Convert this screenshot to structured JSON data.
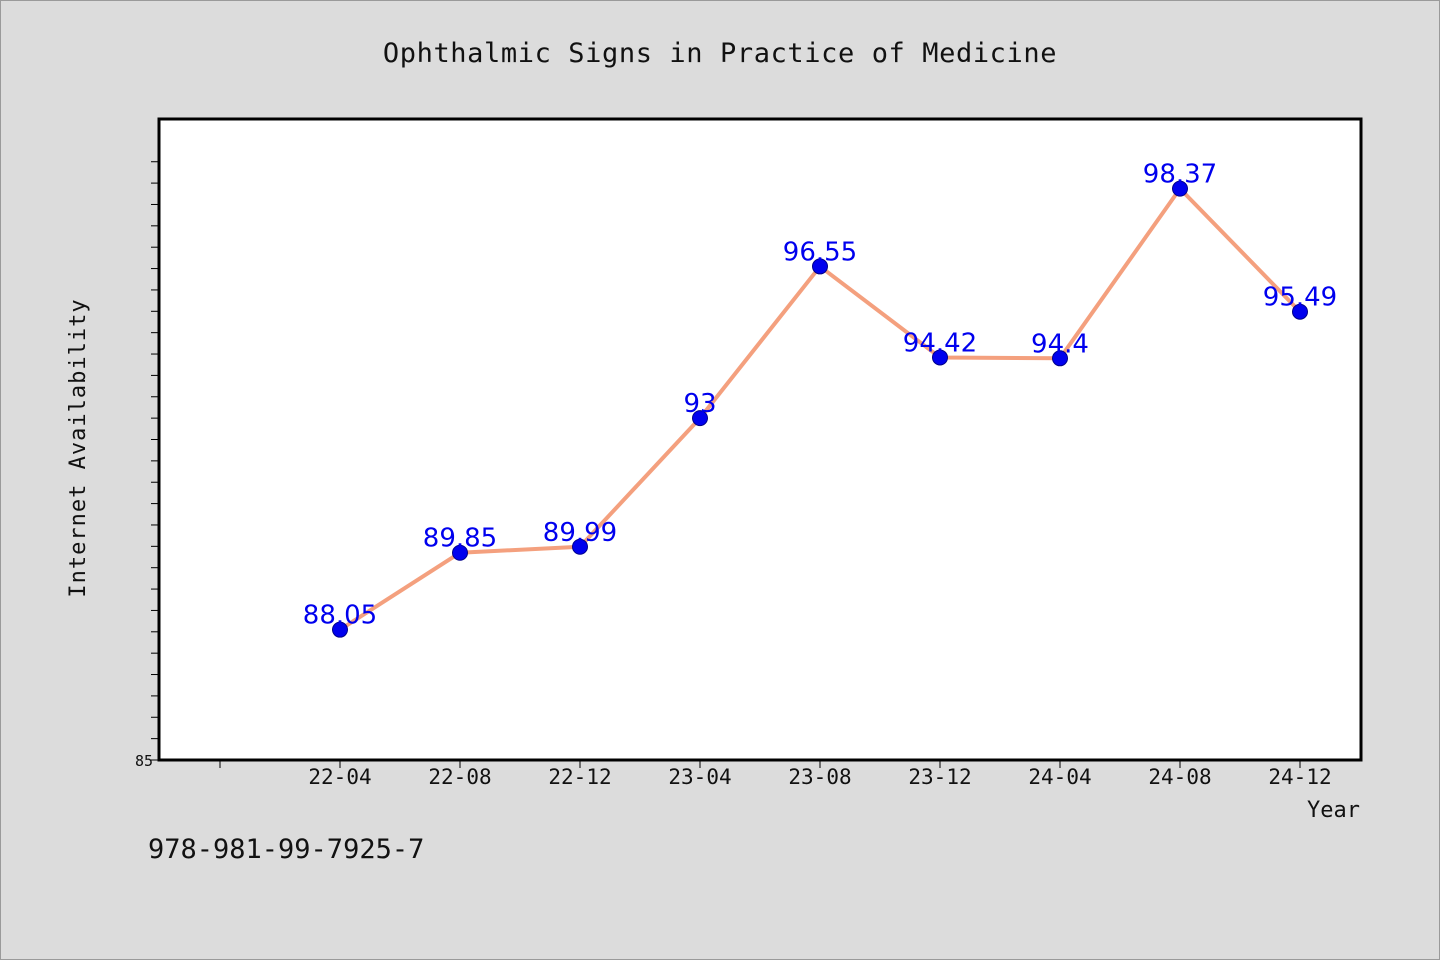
{
  "chart_data": {
    "type": "line",
    "title": "Ophthalmic Signs in Practice of Medicine",
    "xlabel": "Year",
    "ylabel": "Internet Availability",
    "categories": [
      "22-04",
      "22-08",
      "22-12",
      "23-04",
      "23-08",
      "23-12",
      "24-04",
      "24-08",
      "24-12"
    ],
    "values": [
      88.05,
      89.85,
      89.99,
      93,
      96.55,
      94.42,
      94.4,
      98.37,
      95.49
    ],
    "ylim": [
      85,
      100
    ],
    "y_tick_labels": [
      "85"
    ],
    "grid": false,
    "line_color": "#f4a07e",
    "marker_color": "#0000ee",
    "label_color": "#0000ee"
  },
  "footer": {
    "text": "978-981-99-7925-7"
  }
}
